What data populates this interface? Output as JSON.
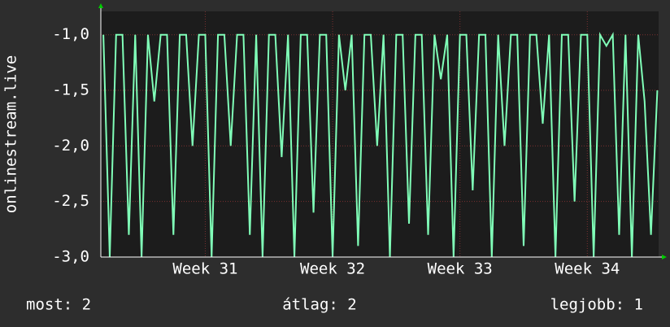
{
  "chart_data": {
    "type": "line",
    "y_label": "onlinestream.live",
    "x": [
      30.2,
      30.25,
      30.3,
      30.35,
      30.4,
      30.45,
      30.5,
      30.55,
      30.6,
      30.65,
      30.7,
      30.75,
      30.8,
      30.85,
      30.9,
      30.95,
      31,
      31.05,
      31.1,
      31.15,
      31.2,
      31.25,
      31.3,
      31.35,
      31.4,
      31.45,
      31.5,
      31.55,
      31.6,
      31.65,
      31.7,
      31.75,
      31.8,
      31.85,
      31.9,
      31.95,
      32,
      32.05,
      32.1,
      32.15,
      32.2,
      32.25,
      32.3,
      32.35,
      32.4,
      32.45,
      32.5,
      32.55,
      32.6,
      32.65,
      32.7,
      32.75,
      32.8,
      32.85,
      32.9,
      32.95,
      33,
      33.05,
      33.1,
      33.15,
      33.2,
      33.25,
      33.3,
      33.35,
      33.4,
      33.45,
      33.5,
      33.55,
      33.6,
      33.65,
      33.7,
      33.75,
      33.8,
      33.85,
      33.9,
      33.95,
      34,
      34.05,
      34.1,
      34.15,
      34.2,
      34.25,
      34.3,
      34.35,
      34.4,
      34.45,
      34.5,
      34.55
    ],
    "series": [
      {
        "name": "onlinestream.live",
        "color": "#80ffb8",
        "values": [
          -1,
          -3,
          -1,
          -1,
          -2.8,
          -1,
          -3,
          -1,
          -1.6,
          -1,
          -1,
          -2.8,
          -1,
          -1,
          -2,
          -1,
          -1,
          -3,
          -1,
          -1,
          -2,
          -1,
          -1,
          -2.8,
          -1,
          -3,
          -1,
          -1,
          -2.1,
          -1,
          -3,
          -1,
          -1,
          -2.6,
          -1,
          -1,
          -3,
          -1,
          -1.5,
          -1,
          -2.9,
          -1,
          -1,
          -2,
          -1,
          -3,
          -1,
          -1,
          -2.7,
          -1,
          -1,
          -2.8,
          -1,
          -1.4,
          -1,
          -3,
          -1,
          -1,
          -2.4,
          -1,
          -1,
          -3,
          -1,
          -2,
          -1,
          -1,
          -2.9,
          -1,
          -1,
          -1.8,
          -1,
          -3,
          -1,
          -1,
          -2.5,
          -1,
          -1,
          -3,
          -1,
          -1.1,
          -1,
          -2.8,
          -1,
          -3,
          -1,
          -1.6,
          -2.8,
          -1.5
        ]
      }
    ],
    "xlim": [
      30.18,
      34.56
    ],
    "xticks": [
      {
        "value": 31,
        "label": "Week 31"
      },
      {
        "value": 32,
        "label": "Week 32"
      },
      {
        "value": 33,
        "label": "Week 33"
      },
      {
        "value": 34,
        "label": "Week 34"
      }
    ],
    "ylim": [
      -3,
      -0.79
    ],
    "yticks": [
      {
        "value": -3,
        "label": "-3,0"
      },
      {
        "value": -2.5,
        "label": "-2,5"
      },
      {
        "value": -2,
        "label": "-2,0"
      },
      {
        "value": -1.5,
        "label": "-1,5"
      },
      {
        "value": -1,
        "label": "-1,0"
      }
    ],
    "grid": true,
    "footer": [
      "most: 2",
      "átlag: 2",
      "legjobb: 1"
    ]
  }
}
